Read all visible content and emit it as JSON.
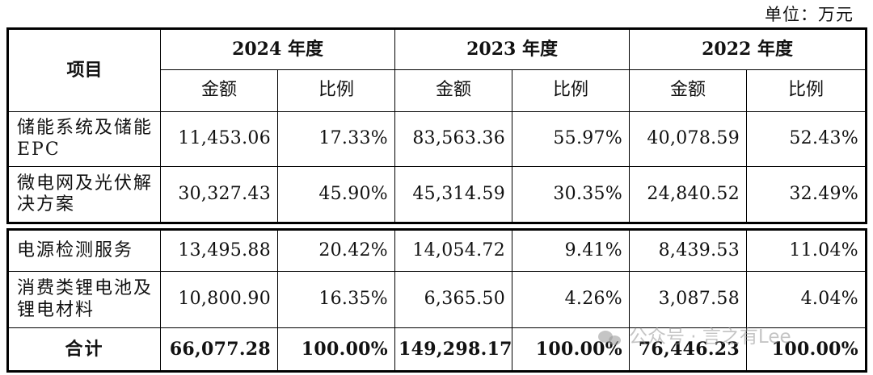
{
  "unit_label": "单位：万元",
  "header": {
    "item_label": "项目",
    "years": [
      "2024 年度",
      "2023 年度",
      "2022 年度"
    ],
    "amount_label": "金额",
    "ratio_label": "比例"
  },
  "rows_top": [
    {
      "label": "储能系统及储能 EPC",
      "values": [
        "11,453.06",
        "17.33%",
        "83,563.36",
        "55.97%",
        "40,078.59",
        "52.43%"
      ]
    },
    {
      "label": "微电网及光伏解决方案",
      "values": [
        "30,327.43",
        "45.90%",
        "45,314.59",
        "30.35%",
        "24,840.52",
        "32.49%"
      ]
    }
  ],
  "rows_bottom": [
    {
      "label": "电源检测服务",
      "values": [
        "13,495.88",
        "20.42%",
        "14,054.72",
        "9.41%",
        "8,439.53",
        "11.04%"
      ]
    },
    {
      "label": "消费类锂电池及锂电材料",
      "values": [
        "10,800.90",
        "16.35%",
        "6,365.50",
        "4.26%",
        "3,087.58",
        "4.04%"
      ]
    }
  ],
  "total": {
    "label": "合计",
    "values": [
      "66,077.28",
      "100.00%",
      "149,298.17",
      "100.00%",
      "76,446.23",
      "100.00%"
    ]
  },
  "watermark": {
    "icon": "wechat-icon",
    "text": "公众号 · 言之有Lee"
  }
}
